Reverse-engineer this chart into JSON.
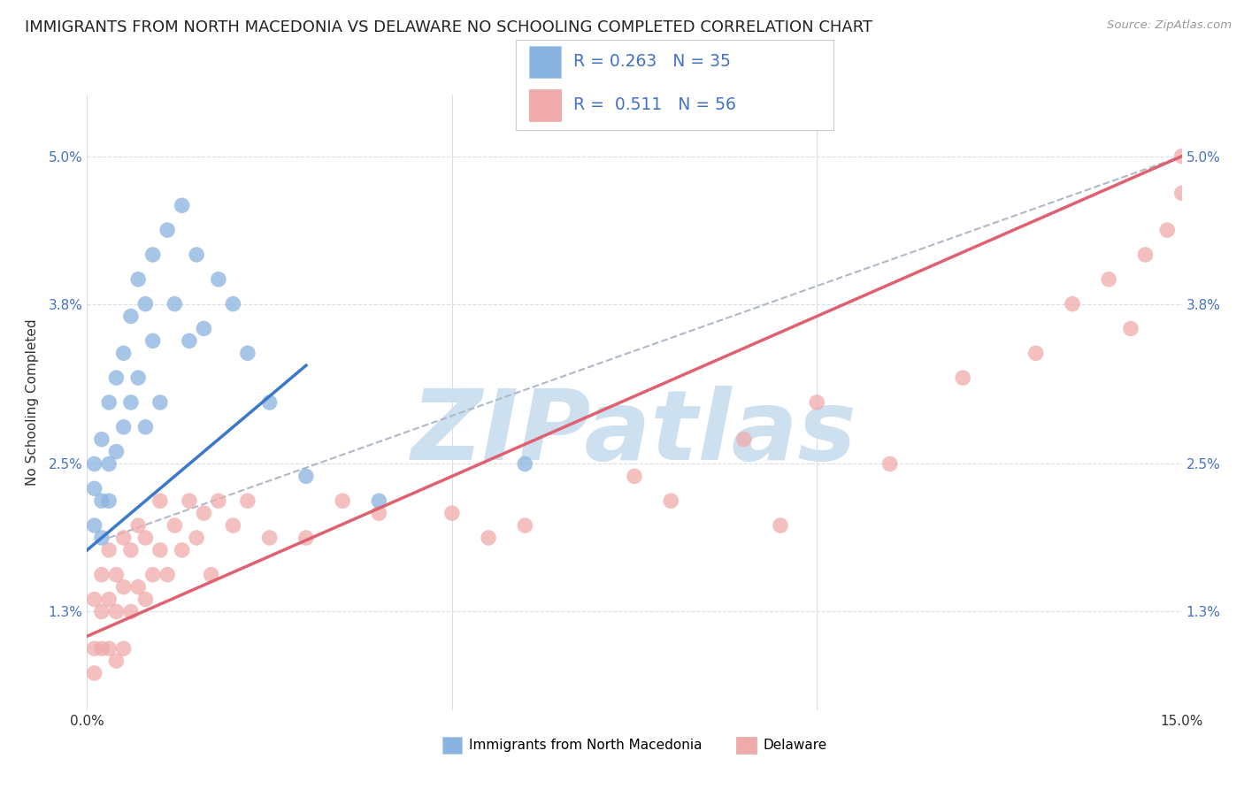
{
  "title": "IMMIGRANTS FROM NORTH MACEDONIA VS DELAWARE NO SCHOOLING COMPLETED CORRELATION CHART",
  "source": "Source: ZipAtlas.com",
  "ylabel": "No Schooling Completed",
  "xlim": [
    0.0,
    0.15
  ],
  "ylim": [
    0.005,
    0.055
  ],
  "xtick_positions": [
    0.0,
    0.05,
    0.1,
    0.15
  ],
  "xticklabels": [
    "0.0%",
    "",
    "",
    "15.0%"
  ],
  "ytick_positions": [
    0.013,
    0.025,
    0.038,
    0.05
  ],
  "ytick_labels": [
    "1.3%",
    "2.5%",
    "3.8%",
    "5.0%"
  ],
  "r_blue": 0.263,
  "n_blue": 35,
  "r_pink": 0.511,
  "n_pink": 56,
  "color_blue": "#8ab4e0",
  "color_pink": "#f0aaaa",
  "color_blue_line": "#3a78c9",
  "color_pink_line": "#e06070",
  "color_dashed": "#b0b8c8",
  "background_color": "#ffffff",
  "grid_color": "#d8dde8",
  "watermark": "ZIPatlas",
  "watermark_color": "#cde0f0",
  "title_fontsize": 13,
  "label_fontsize": 11,
  "tick_fontsize": 11,
  "tick_color": "#4472c4",
  "blue_scatter_x": [
    0.001,
    0.001,
    0.001,
    0.002,
    0.002,
    0.002,
    0.003,
    0.003,
    0.003,
    0.004,
    0.004,
    0.005,
    0.005,
    0.006,
    0.006,
    0.007,
    0.007,
    0.008,
    0.008,
    0.009,
    0.009,
    0.01,
    0.011,
    0.012,
    0.013,
    0.014,
    0.015,
    0.016,
    0.018,
    0.02,
    0.022,
    0.025,
    0.03,
    0.04,
    0.06
  ],
  "blue_scatter_y": [
    0.023,
    0.025,
    0.02,
    0.022,
    0.027,
    0.019,
    0.03,
    0.022,
    0.025,
    0.032,
    0.026,
    0.034,
    0.028,
    0.037,
    0.03,
    0.04,
    0.032,
    0.038,
    0.028,
    0.042,
    0.035,
    0.03,
    0.044,
    0.038,
    0.046,
    0.035,
    0.042,
    0.036,
    0.04,
    0.038,
    0.034,
    0.03,
    0.024,
    0.022,
    0.025
  ],
  "pink_scatter_x": [
    0.001,
    0.001,
    0.001,
    0.002,
    0.002,
    0.002,
    0.003,
    0.003,
    0.003,
    0.004,
    0.004,
    0.004,
    0.005,
    0.005,
    0.005,
    0.006,
    0.006,
    0.007,
    0.007,
    0.008,
    0.008,
    0.009,
    0.01,
    0.01,
    0.011,
    0.012,
    0.013,
    0.014,
    0.015,
    0.016,
    0.017,
    0.018,
    0.02,
    0.022,
    0.025,
    0.03,
    0.035,
    0.04,
    0.05,
    0.055,
    0.06,
    0.075,
    0.08,
    0.09,
    0.095,
    0.1,
    0.11,
    0.12,
    0.13,
    0.135,
    0.14,
    0.143,
    0.145,
    0.148,
    0.15,
    0.15
  ],
  "pink_scatter_y": [
    0.014,
    0.01,
    0.008,
    0.013,
    0.01,
    0.016,
    0.014,
    0.01,
    0.018,
    0.013,
    0.009,
    0.016,
    0.015,
    0.01,
    0.019,
    0.013,
    0.018,
    0.015,
    0.02,
    0.014,
    0.019,
    0.016,
    0.018,
    0.022,
    0.016,
    0.02,
    0.018,
    0.022,
    0.019,
    0.021,
    0.016,
    0.022,
    0.02,
    0.022,
    0.019,
    0.019,
    0.022,
    0.021,
    0.021,
    0.019,
    0.02,
    0.024,
    0.022,
    0.027,
    0.02,
    0.03,
    0.025,
    0.032,
    0.034,
    0.038,
    0.04,
    0.036,
    0.042,
    0.044,
    0.047,
    0.05
  ],
  "blue_line_x": [
    0.0,
    0.03
  ],
  "blue_line_y": [
    0.018,
    0.033
  ],
  "pink_line_x": [
    0.0,
    0.15
  ],
  "pink_line_y": [
    0.011,
    0.05
  ],
  "dashed_line_x": [
    0.003,
    0.15
  ],
  "dashed_line_y": [
    0.019,
    0.05
  ],
  "legend_entries": [
    "Immigrants from North Macedonia",
    "Delaware"
  ]
}
